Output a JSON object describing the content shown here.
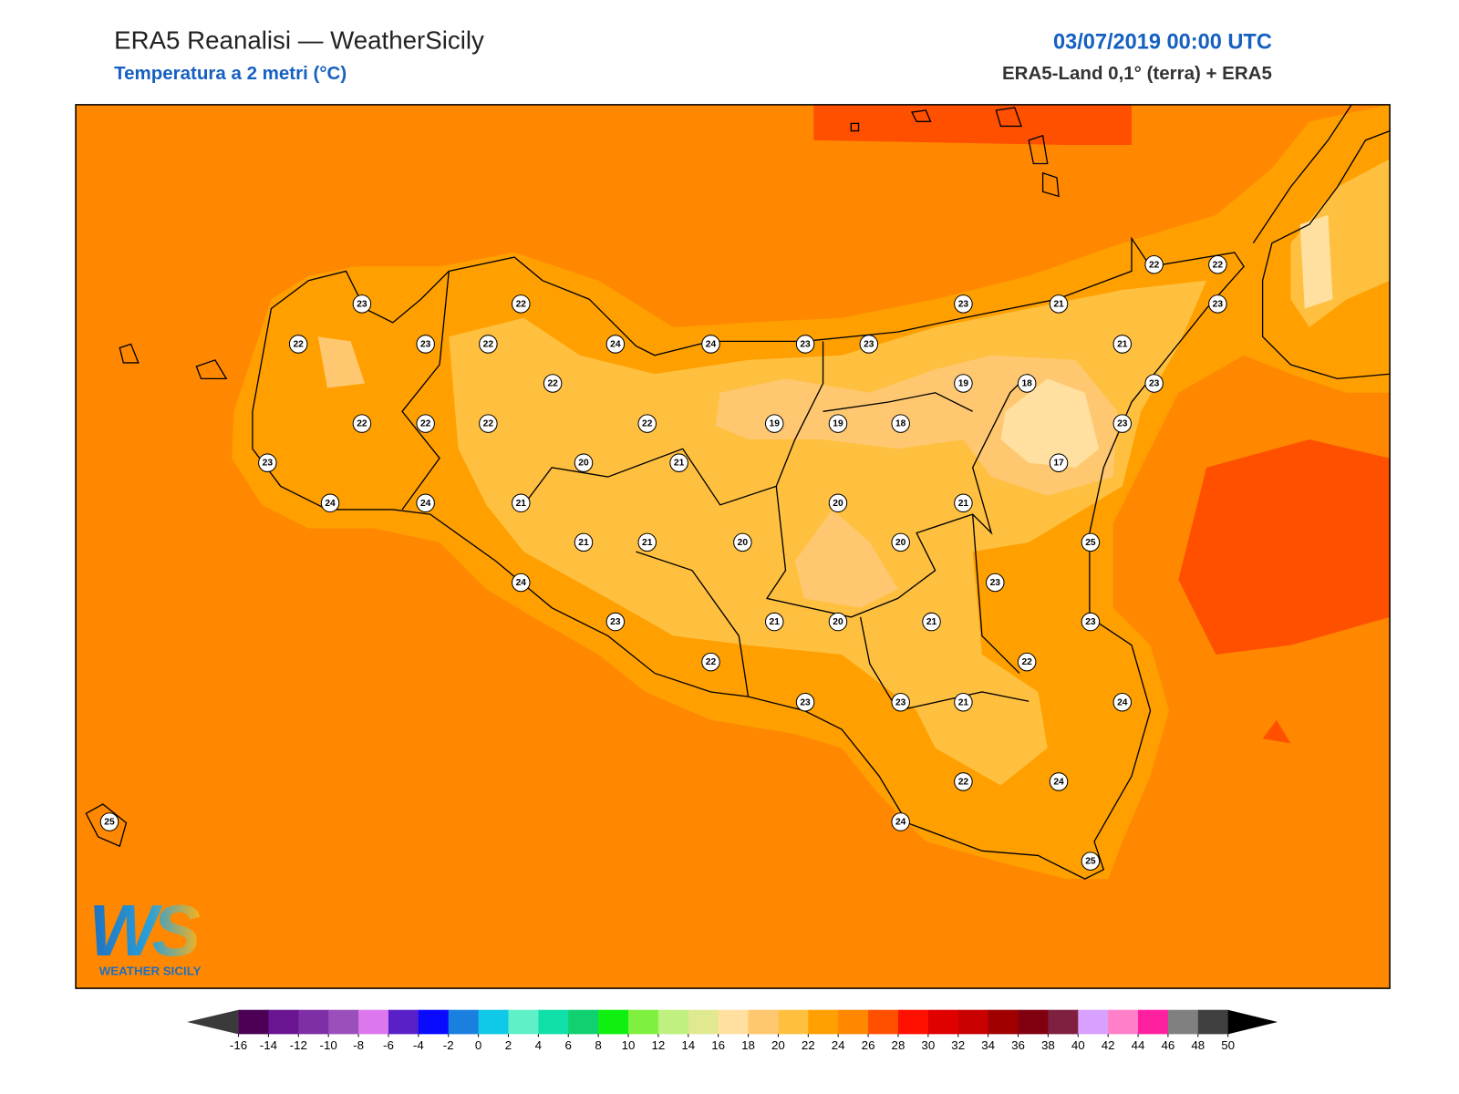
{
  "header": {
    "title": "ERA5 Reanalisi — WeatherSicily",
    "subtitle": "Temperatura a 2 metri (°C)",
    "datetime": "03/07/2019 00:00 UTC",
    "source": "ERA5-Land 0,1° (terra) + ERA5"
  },
  "map": {
    "stations": [
      23,
      22,
      23,
      21,
      22,
      22,
      23,
      22,
      23,
      22,
      24,
      24,
      23,
      23,
      21,
      22,
      19,
      18,
      23,
      22,
      22,
      22,
      22,
      19,
      19,
      18,
      23,
      23,
      20,
      21,
      17,
      24,
      24,
      21,
      20,
      21,
      21,
      21,
      20,
      20,
      25,
      24,
      23,
      23,
      21,
      20,
      21,
      23,
      22,
      22,
      23,
      23,
      21,
      24,
      22,
      24,
      25,
      24,
      25
    ]
  },
  "colorbar": {
    "ticks": [
      -16,
      -14,
      -12,
      -10,
      -8,
      -6,
      -4,
      -2,
      0,
      2,
      4,
      6,
      8,
      10,
      12,
      14,
      16,
      18,
      20,
      22,
      24,
      26,
      28,
      30,
      32,
      34,
      36,
      38,
      40,
      42,
      44,
      46,
      48,
      50
    ],
    "colors": [
      "#4b0055",
      "#6a1592",
      "#7e2fa6",
      "#9b4fba",
      "#dd77ee",
      "#5a20c8",
      "#0a0aff",
      "#1a80e0",
      "#10c8e8",
      "#60f0c8",
      "#10e0a8",
      "#10d070",
      "#10f010",
      "#80f040",
      "#c0f080",
      "#e0e890",
      "#ffe0a0",
      "#ffc870",
      "#ffc040",
      "#ffa000",
      "#ff8800",
      "#ff5000",
      "#ff1000",
      "#e00000",
      "#c80000",
      "#a00000",
      "#800010",
      "#802040",
      "#d8a0ff",
      "#ff80c8",
      "#ff20a0",
      "#808080",
      "#404040"
    ],
    "under_color": "#3a3a3a",
    "over_color": "#000000"
  },
  "logo": {
    "mark": "WS",
    "text": "WEATHER SICILY"
  }
}
